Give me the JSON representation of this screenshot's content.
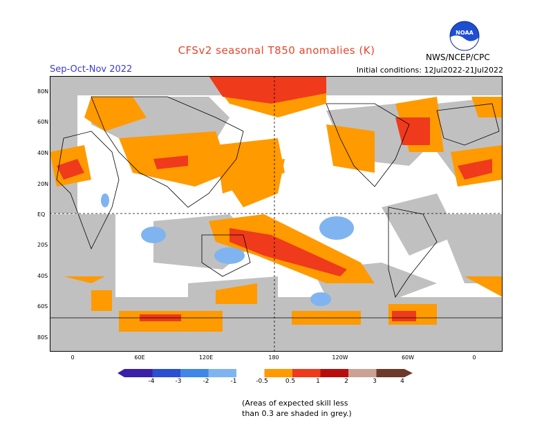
{
  "header": {
    "title": "CFSv2 seasonal T850 anomalies (K)",
    "season": "Sep-Oct-Nov 2022",
    "initial_conditions": "Initial conditions: 12Jul2022-21Jul2022",
    "agency": "NWS/NCEP/CPC",
    "logo_text": "NOAA"
  },
  "axes": {
    "lat_labels": [
      "80N",
      "60N",
      "40N",
      "20N",
      "EQ",
      "20S",
      "40S",
      "60S",
      "80S"
    ],
    "lon_labels": [
      "0",
      "60E",
      "120E",
      "180",
      "120W",
      "60W",
      "0"
    ]
  },
  "colorbar": {
    "labels": [
      "-4",
      "-3",
      "-2",
      "-1",
      "-0.5",
      "0.5",
      "1",
      "2",
      "3",
      "4"
    ],
    "colors": [
      "#3a1fa8",
      "#2a4fd0",
      "#3f86e8",
      "#7fb4f0",
      "#ffffff",
      "#ff9a00",
      "#ef3a1c",
      "#b80c0c",
      "#c9a294",
      "#6b3a2a"
    ]
  },
  "colors": {
    "grey_skill": "#c0c0c0",
    "orange": "#ff9a00",
    "red": "#ef3a1c",
    "blue": "#7fb4f0"
  },
  "note": {
    "line1": "(Areas of expected skill less",
    "line2": "than 0.3 are shaded in grey.)"
  }
}
